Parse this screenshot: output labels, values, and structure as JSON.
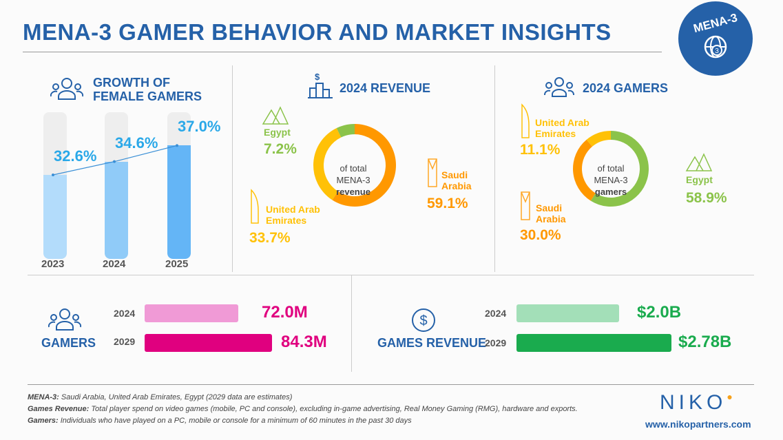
{
  "title": "MENA-3 GAMER BEHAVIOR AND MARKET INSIGHTS",
  "badge": "MENA-3",
  "colors": {
    "blue": "#2561a8",
    "sa": "#ff9800",
    "uae": "#ffc107",
    "egypt": "#8bc34a",
    "pink": "#f09ad6",
    "magenta": "#e0007f",
    "lightgreen": "#a3dfb8",
    "green": "#1aab4e"
  },
  "female": {
    "title1": "GROWTH OF",
    "title2": "FEMALE GAMERS",
    "labels": [
      "32.6%",
      "34.6%",
      "37.0%"
    ],
    "years": [
      "2023",
      "2024",
      "2025"
    ]
  },
  "revenue": {
    "title": "2024 REVENUE",
    "center": [
      "of total",
      "MENA-3",
      "revenue"
    ],
    "egypt_name": "Egypt",
    "egypt_val": "7.2%",
    "sa_name1": "Saudi",
    "sa_name2": "Arabia",
    "sa_val": "59.1%",
    "uae_name1": "United Arab",
    "uae_name2": "Emirates",
    "uae_val": "33.7%"
  },
  "gamers": {
    "title": "2024 GAMERS",
    "center": [
      "of total",
      "MENA-3",
      "gamers"
    ],
    "egypt_name": "Egypt",
    "egypt_val": "58.9%",
    "sa_name1": "Saudi",
    "sa_name2": "Arabia",
    "sa_val": "30.0%",
    "uae_name1": "United Arab",
    "uae_name2": "Emirates",
    "uae_val": "11.1%"
  },
  "gamers_total": {
    "label": "GAMERS",
    "y1": "2024",
    "v1": "72.0M",
    "y2": "2029",
    "v2": "84.3M"
  },
  "games_revenue": {
    "label": "GAMES REVENUE",
    "y1": "2024",
    "v1": "$2.0B",
    "y2": "2029",
    "v2": "$2.78B"
  },
  "footer": {
    "l1b": "MENA-3:",
    "l1": " Saudi Arabia, United Arab Emirates, Egypt (2029 data are estimates)",
    "l2b": "Games Revenue:",
    "l2": " Total player spend on video games (mobile, PC and console), excluding in-game advertising, Real Money Gaming (RMG), hardware and exports.",
    "l3b": "Gamers:",
    "l3": " Individuals who have played on a PC, mobile or console for a minimum of 60 minutes in the past 30 days"
  },
  "brand": {
    "logo": "NIKO",
    "url": "www.nikopartners.com"
  },
  "chart_data": [
    {
      "type": "bar",
      "title": "GROWTH OF FEMALE GAMERS",
      "categories": [
        "2023",
        "2024",
        "2025"
      ],
      "values": [
        32.6,
        34.6,
        37.0
      ],
      "unit": "%"
    },
    {
      "type": "pie",
      "title": "2024 REVENUE",
      "categories": [
        "Saudi Arabia",
        "United Arab Emirates",
        "Egypt"
      ],
      "values": [
        59.1,
        33.7,
        7.2
      ],
      "colors": [
        "#ff9800",
        "#ffc107",
        "#8bc34a"
      ]
    },
    {
      "type": "pie",
      "title": "2024 GAMERS",
      "categories": [
        "Egypt",
        "Saudi Arabia",
        "United Arab Emirates"
      ],
      "values": [
        58.9,
        30.0,
        11.1
      ],
      "colors": [
        "#8bc34a",
        "#ff9800",
        "#ffc107"
      ]
    },
    {
      "type": "bar",
      "title": "GAMERS",
      "categories": [
        "2024",
        "2029"
      ],
      "values": [
        72.0,
        84.3
      ],
      "unit": "M"
    },
    {
      "type": "bar",
      "title": "GAMES REVENUE",
      "categories": [
        "2024",
        "2029"
      ],
      "values": [
        2.0,
        2.78
      ],
      "unit": "$B"
    }
  ]
}
